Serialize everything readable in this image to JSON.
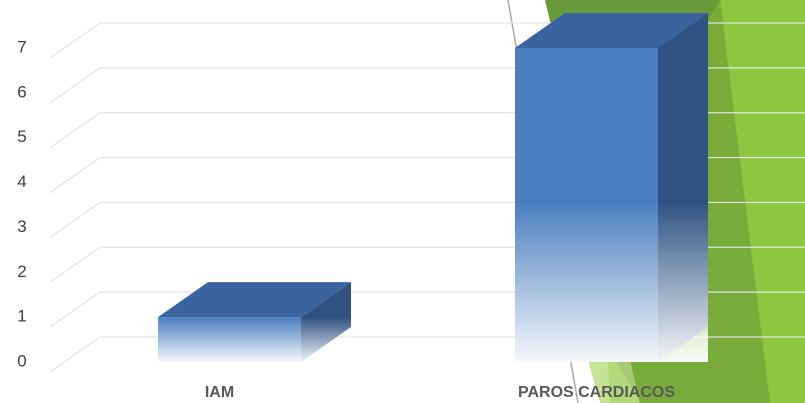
{
  "chart_data": {
    "type": "bar3d",
    "categories": [
      "IAM",
      "PAROS CARDIACOS"
    ],
    "values": [
      1,
      7
    ],
    "color": "#4a7ebf",
    "ylim": [
      0,
      7
    ],
    "yticks": [
      0,
      1,
      2,
      3,
      4,
      5,
      6,
      7
    ],
    "grid": true
  }
}
